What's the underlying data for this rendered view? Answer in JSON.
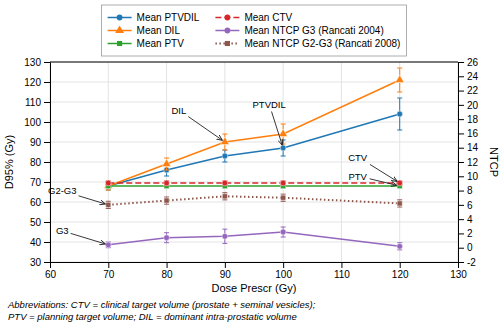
{
  "chart_data": {
    "type": "line",
    "xlabel": "Dose Prescr (Gy)",
    "ylabel": "D95% (Gy)",
    "y2label": "NTCP",
    "x": [
      70,
      80,
      90,
      100,
      120
    ],
    "xlim": [
      60,
      130
    ],
    "xticks": [
      60,
      70,
      80,
      90,
      100,
      110,
      120,
      130
    ],
    "ylim": [
      30,
      130
    ],
    "yticks": [
      30,
      40,
      50,
      60,
      70,
      80,
      90,
      100,
      110,
      120,
      130
    ],
    "y2lim": [
      -2,
      26
    ],
    "y2ticks": [
      -2,
      0,
      2,
      4,
      6,
      8,
      10,
      12,
      14,
      16,
      18,
      20,
      22,
      24,
      26
    ],
    "grid": true,
    "legend": "top",
    "series": [
      {
        "name": "Mean PTVDIL",
        "values": [
          68,
          76,
          83,
          87,
          104
        ],
        "errors": [
          2,
          3,
          3,
          4,
          8
        ],
        "marker": "circle",
        "line_style": "solid"
      },
      {
        "name": "Mean DIL",
        "values": [
          68,
          79,
          90,
          94,
          121
        ],
        "errors": [
          2,
          3,
          4,
          5,
          6
        ],
        "marker": "triangle",
        "line_style": "solid"
      },
      {
        "name": "Mean PTV",
        "values": [
          68,
          68,
          68,
          68,
          68
        ],
        "errors": [
          1,
          1,
          1,
          1,
          1
        ],
        "marker": "square",
        "line_style": "solid"
      },
      {
        "name": "Mean CTV",
        "values": [
          69.5,
          69.5,
          69.5,
          69.5,
          69.5
        ],
        "errors": [
          1,
          1,
          1,
          1,
          1
        ],
        "marker": "circle",
        "line_style": "dashed"
      },
      {
        "name": "Mean NTCP G3 (Rancati 2004)",
        "axis": "y2",
        "values": [
          0.4,
          1.4,
          1.6,
          2.2,
          0.2
        ],
        "errors": [
          0.4,
          0.7,
          1.0,
          0.7,
          0.5
        ],
        "marker": "circle",
        "line_style": "solid"
      },
      {
        "name": "Mean NTCP G2-G3 (Rancati 2008)",
        "axis": "y2",
        "values": [
          6.0,
          6.6,
          7.2,
          7.0,
          6.2
        ],
        "errors": [
          0.5,
          0.5,
          0.5,
          0.5,
          0.5
        ],
        "marker": "square",
        "line_style": "dotted"
      }
    ],
    "annotations": [
      "PTVDIL",
      "DIL",
      "CTV",
      "PTV",
      "G2-G3",
      "G3"
    ],
    "footnotes": [
      "Abbreviations: CTV = clinical target volume (prostate + seminal vesicles);",
      "PTV = planning target volume; DIL = dominant intra-prostatic volume"
    ]
  }
}
